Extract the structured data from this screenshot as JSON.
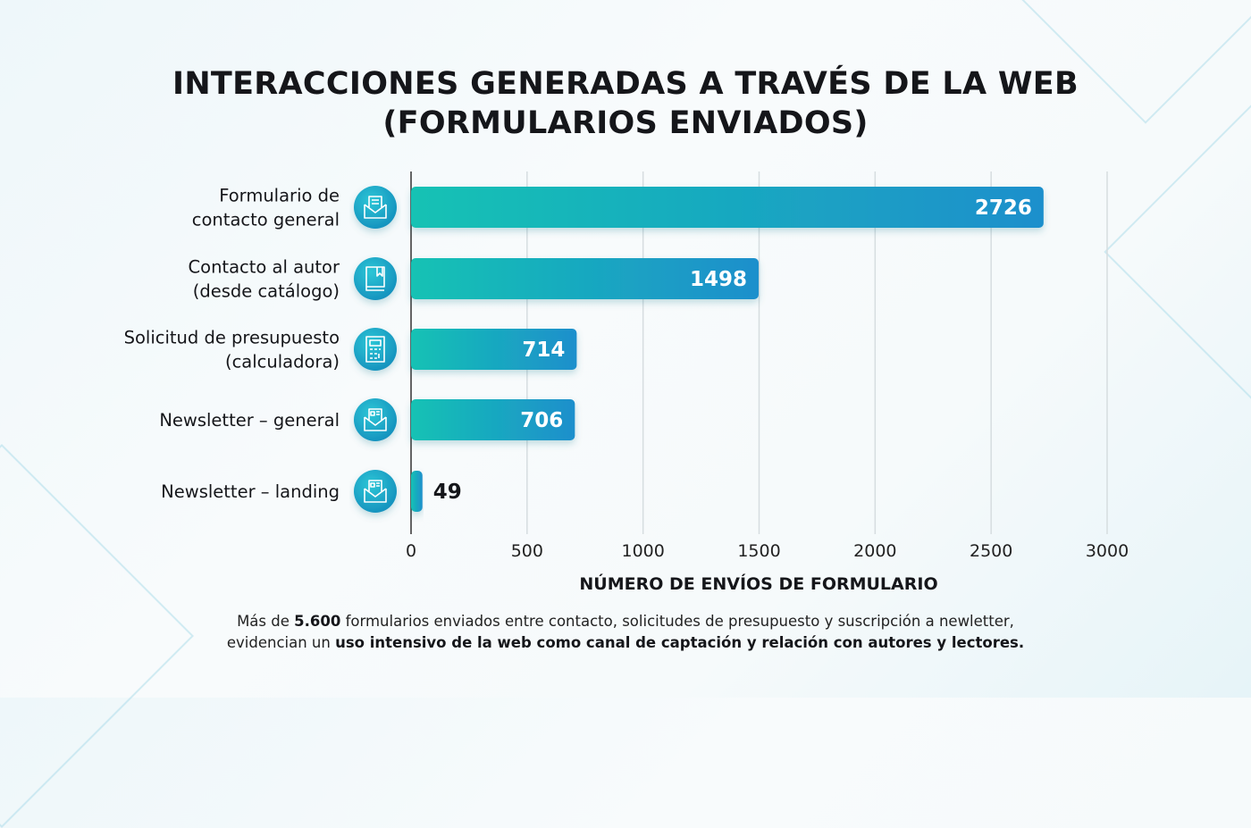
{
  "chart_data": {
    "type": "bar",
    "orientation": "horizontal",
    "title_lines": [
      "INTERACCIONES GENERADAS A TRAVÉS DE LA WEB",
      "(FORMULARIOS ENVIADOS)"
    ],
    "categories": [
      [
        "Formulario de",
        "contacto general"
      ],
      [
        "Contacto al autor",
        "(desde catálogo)"
      ],
      [
        "Solicitud de presupuesto",
        "(calculadora)"
      ],
      [
        "Newsletter – general"
      ],
      [
        "Newsletter – landing"
      ]
    ],
    "icons": [
      "open-envelope-letter-icon",
      "book-icon",
      "calculator-icon",
      "newsletter-envelope-icon",
      "newsletter-envelope-icon"
    ],
    "values": [
      2726,
      1498,
      714,
      706,
      49
    ],
    "data_labels": [
      "2726",
      "1498",
      "714",
      "706",
      "49"
    ],
    "xlabel": "NÚMERO DE ENVÍOS DE FORMULARIO",
    "ylabel": "",
    "xlim": [
      0,
      3000
    ],
    "xticks": [
      0,
      500,
      1000,
      1500,
      2000,
      2500,
      3000
    ],
    "xtick_labels": [
      "0",
      "500",
      "1000",
      "1500",
      "2000",
      "2500",
      "3000"
    ],
    "grid": "vertical",
    "colors": {
      "bar_start": "#12c2b4",
      "bar_end": "#1f8fcc",
      "icon_circle": "#1aa6c8",
      "text": "#15161a"
    }
  },
  "footer": {
    "line1": [
      {
        "text": "Más de ",
        "bold": false
      },
      {
        "text": "5.600",
        "bold": true
      },
      {
        "text": " formularios enviados entre contacto, solicitudes de presupuesto y suscripción a newletter,",
        "bold": false
      }
    ],
    "line2": [
      {
        "text": "evidencian un ",
        "bold": false
      },
      {
        "text": "uso intensivo de la web como canal de captación y relación con autores y lectores.",
        "bold": true
      }
    ]
  }
}
